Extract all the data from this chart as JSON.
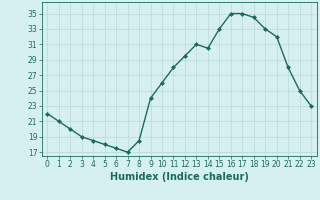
{
  "x": [
    0,
    1,
    2,
    3,
    4,
    5,
    6,
    7,
    8,
    9,
    10,
    11,
    12,
    13,
    14,
    15,
    16,
    17,
    18,
    19,
    20,
    21,
    22,
    23
  ],
  "y": [
    22,
    21,
    20,
    19,
    18.5,
    18,
    17.5,
    17,
    18.5,
    24,
    26,
    28,
    29.5,
    31,
    30.5,
    33,
    35,
    35,
    34.5,
    33,
    32,
    28,
    25,
    23
  ],
  "line_color": "#1a6b5e",
  "marker": "D",
  "marker_size": 2.0,
  "bg_color": "#d6f0f0",
  "grid_color": "#b8d8d8",
  "xlabel": "Humidex (Indice chaleur)",
  "xlabel_fontsize": 7,
  "ytick_labels": [
    "17",
    "19",
    "21",
    "23",
    "25",
    "27",
    "29",
    "31",
    "33",
    "35"
  ],
  "ytick_vals": [
    17,
    19,
    21,
    23,
    25,
    27,
    29,
    31,
    33,
    35
  ],
  "xtick_vals": [
    0,
    1,
    2,
    3,
    4,
    5,
    6,
    7,
    8,
    9,
    10,
    11,
    12,
    13,
    14,
    15,
    16,
    17,
    18,
    19,
    20,
    21,
    22,
    23
  ],
  "xtick_labels": [
    "0",
    "1",
    "2",
    "3",
    "4",
    "5",
    "6",
    "7",
    "8",
    "9",
    "10",
    "11",
    "12",
    "13",
    "14",
    "15",
    "16",
    "17",
    "18",
    "19",
    "20",
    "21",
    "22",
    "23"
  ],
  "ylim": [
    16.5,
    36.5
  ],
  "xlim": [
    -0.5,
    23.5
  ],
  "tick_fontsize": 5.5,
  "line_width": 1.0
}
